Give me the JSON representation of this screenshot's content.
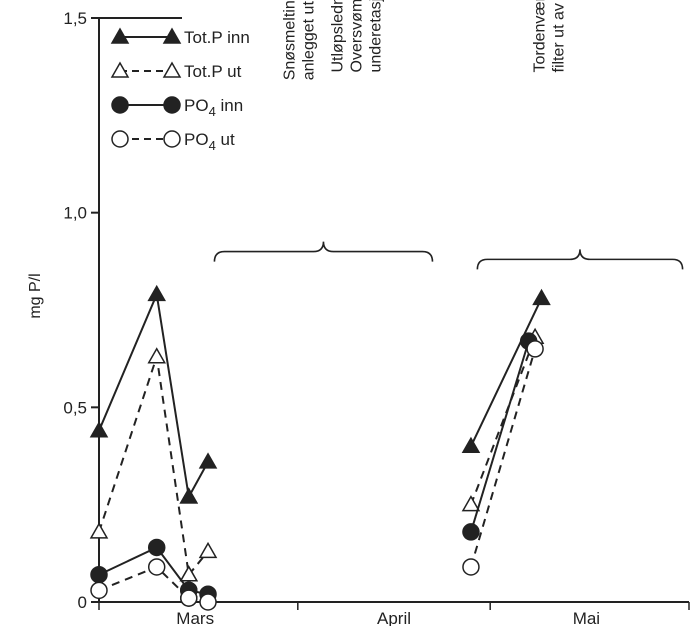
{
  "chart_data": {
    "type": "line",
    "ylabel": "mg P/l",
    "ylim": [
      0,
      1.5
    ],
    "yticks": [
      {
        "value": 0,
        "label": "0"
      },
      {
        "value": 0.5,
        "label": "0,5"
      },
      {
        "value": 1.0,
        "label": "1,0"
      },
      {
        "value": 1.5,
        "label": "1,5"
      }
    ],
    "x_unit": "days from 1 March",
    "xlim": [
      0,
      92
    ],
    "month_labels": [
      {
        "label": "Mars",
        "x": 15
      },
      {
        "label": "April",
        "x": 46
      },
      {
        "label": "Mai",
        "x": 76
      }
    ],
    "month_ticks": [
      0,
      31,
      61,
      92
    ],
    "legend_position": "top-left",
    "series": [
      {
        "name": "Tot.P inn",
        "sub": "",
        "name_after": "",
        "marker": "triangle-filled",
        "dash": "solid",
        "segments": [
          [
            [
              0,
              0.44
            ],
            [
              9,
              0.79
            ],
            [
              14,
              0.27
            ]
          ],
          [
            [
              14,
              0.27
            ],
            [
              17,
              0.36
            ]
          ],
          [
            [
              69,
              0.78
            ],
            [
              58,
              0.4
            ]
          ]
        ]
      },
      {
        "name": "Tot.P ut",
        "sub": "",
        "name_after": "",
        "marker": "triangle-open",
        "dash": "dashed",
        "segments": [
          [
            [
              0,
              0.18
            ],
            [
              9,
              0.63
            ],
            [
              14,
              0.07
            ]
          ],
          [
            [
              14,
              0.07
            ],
            [
              17,
              0.13
            ]
          ],
          [
            [
              58,
              0.25
            ],
            [
              68,
              0.68
            ]
          ]
        ]
      },
      {
        "name": "PO",
        "sub": "4",
        "name_after": " inn",
        "marker": "circle-filled",
        "dash": "solid",
        "segments": [
          [
            [
              0,
              0.07
            ],
            [
              9,
              0.14
            ],
            [
              14,
              0.03
            ]
          ],
          [
            [
              14,
              0.03
            ],
            [
              17,
              0.02
            ]
          ],
          [
            [
              58,
              0.18
            ],
            [
              67,
              0.67
            ]
          ]
        ]
      },
      {
        "name": "PO",
        "sub": "4",
        "name_after": " ut",
        "marker": "circle-open",
        "dash": "dashed",
        "segments": [
          [
            [
              0,
              0.03
            ],
            [
              9,
              0.09
            ],
            [
              14,
              0.01
            ]
          ],
          [
            [
              14,
              0.01
            ],
            [
              17,
              0.0
            ]
          ],
          [
            [
              58,
              0.09
            ],
            [
              68,
              0.65
            ]
          ]
        ]
      }
    ],
    "annotations": [
      {
        "lines": [
          "Snøsmelting satte",
          "anlegget ut av drift"
        ],
        "x": 31,
        "y": 1.34
      },
      {
        "lines": [
          "Utløpsledning tett",
          "Oversvømmelse i",
          "underetasje"
        ],
        "x": 40,
        "y": 1.36
      },
      {
        "lines": [
          "Tordenvær satte",
          "filter ut av drift"
        ],
        "x": 70,
        "y": 1.36
      }
    ],
    "braces": [
      {
        "x0": 18,
        "x1": 52,
        "y": 0.9
      },
      {
        "x0": 59,
        "x1": 91,
        "y": 0.88
      }
    ]
  }
}
